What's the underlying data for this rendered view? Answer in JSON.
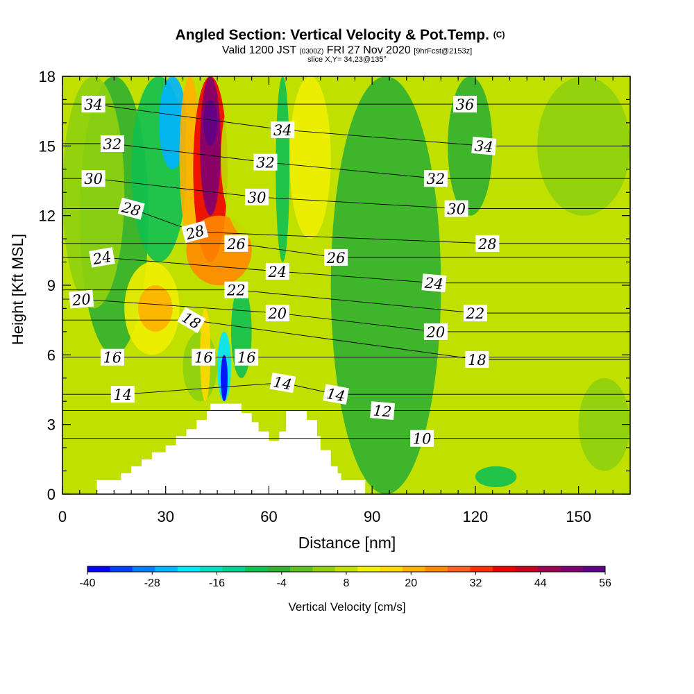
{
  "chart_data": {
    "type": "heatmap",
    "title": "Angled Section: Vertical Velocity & Pot.Temp.",
    "title_mark": "(C)",
    "subtitle_parts": [
      "Valid 1200 JST",
      "(0300Z)",
      "FRI 27 Nov 2020",
      "[9hrFcst@2153z]"
    ],
    "slice_label": "slice X,Y= 34,23@135°",
    "xlabel": "Distance [nm]",
    "ylabel": "Height [Kft MSL]",
    "xlim": [
      0,
      165
    ],
    "ylim": [
      0,
      18
    ],
    "x_ticks": [
      "0",
      "30",
      "60",
      "90",
      "120",
      "150"
    ],
    "x_tick_values": [
      0,
      30,
      60,
      90,
      120,
      150
    ],
    "y_ticks": [
      "0",
      "3",
      "6",
      "9",
      "12",
      "15",
      "18"
    ],
    "y_tick_values": [
      0,
      3,
      6,
      9,
      12,
      15,
      18
    ],
    "terrain": [
      [
        10,
        0
      ],
      [
        10,
        0.6
      ],
      [
        17,
        0.6
      ],
      [
        17,
        0.9
      ],
      [
        20,
        0.9
      ],
      [
        20,
        1.2
      ],
      [
        23,
        1.2
      ],
      [
        23,
        1.5
      ],
      [
        26,
        1.5
      ],
      [
        26,
        1.8
      ],
      [
        30,
        1.8
      ],
      [
        30,
        2.1
      ],
      [
        33,
        2.1
      ],
      [
        33,
        2.5
      ],
      [
        36,
        2.5
      ],
      [
        36,
        2.8
      ],
      [
        39,
        2.8
      ],
      [
        39,
        3.2
      ],
      [
        42,
        3.2
      ],
      [
        42,
        3.6
      ],
      [
        43,
        3.6
      ],
      [
        43,
        3.9
      ],
      [
        52,
        3.9
      ],
      [
        52,
        3.5
      ],
      [
        55,
        3.5
      ],
      [
        55,
        3.1
      ],
      [
        57,
        3.1
      ],
      [
        57,
        2.7
      ],
      [
        60,
        2.7
      ],
      [
        60,
        2.3
      ],
      [
        63,
        2.3
      ],
      [
        63,
        2.7
      ],
      [
        65,
        2.7
      ],
      [
        65,
        3.6
      ],
      [
        71,
        3.6
      ],
      [
        71,
        3.2
      ],
      [
        74,
        3.2
      ],
      [
        74,
        2.5
      ],
      [
        75,
        2.5
      ],
      [
        75,
        1.9
      ],
      [
        78,
        1.9
      ],
      [
        78,
        1.2
      ],
      [
        80,
        1.2
      ],
      [
        80,
        0.9
      ],
      [
        81,
        0.9
      ],
      [
        81,
        0.6
      ],
      [
        88,
        0.6
      ],
      [
        88,
        0
      ]
    ],
    "colorbar": {
      "label": "Vertical Velocity [cm/s]",
      "tick_labels": [
        "-40",
        "-28",
        "-16",
        "-4",
        "8",
        "20",
        "32",
        "44",
        "56"
      ],
      "tick_values": [
        -40,
        -28,
        -16,
        -4,
        8,
        20,
        32,
        44,
        56
      ],
      "colors": [
        "#0000ff",
        "#0040ff",
        "#0080ff",
        "#00b4ff",
        "#00e6ff",
        "#00e0c0",
        "#00d090",
        "#10c050",
        "#30b030",
        "#60c020",
        "#90d010",
        "#c0e000",
        "#f0f000",
        "#ffd800",
        "#ffb000",
        "#ff8800",
        "#ff6020",
        "#ff3000",
        "#ee0000",
        "#c80020",
        "#a00050",
        "#800070",
        "#600088"
      ]
    },
    "wave_field": [
      {
        "x0": 5,
        "x1": 25,
        "y0": 6,
        "y1": 18,
        "w": -5
      },
      {
        "x0": 20,
        "x1": 36,
        "y0": 10,
        "y1": 18,
        "w": -8
      },
      {
        "x0": 0,
        "x1": 18,
        "y0": 8,
        "y1": 18,
        "w": 2
      },
      {
        "x0": 18,
        "x1": 34,
        "y0": 6,
        "y1": 10,
        "w": 14
      },
      {
        "x0": 22,
        "x1": 32,
        "y0": 7,
        "y1": 9,
        "w": 22
      },
      {
        "x0": 28,
        "x1": 36,
        "y0": 14,
        "y1": 18,
        "w": -24
      },
      {
        "x0": 34,
        "x1": 40,
        "y0": 11,
        "y1": 18,
        "w": 20
      },
      {
        "x0": 38,
        "x1": 48,
        "y0": 10,
        "y1": 18,
        "w": 36
      },
      {
        "x0": 40,
        "x1": 46,
        "y0": 12,
        "y1": 18,
        "w": 50
      },
      {
        "x0": 41,
        "x1": 45,
        "y0": 15,
        "y1": 17,
        "w": 56
      },
      {
        "x0": 36,
        "x1": 55,
        "y0": 9,
        "y1": 12,
        "w": 24
      },
      {
        "x0": 46,
        "x1": 62,
        "y0": 11,
        "y1": 18,
        "w": 10
      },
      {
        "x0": 35,
        "x1": 45,
        "y0": 4,
        "y1": 7,
        "w": 4
      },
      {
        "x0": 40,
        "x1": 43,
        "y0": 4,
        "y1": 8,
        "w": 18
      },
      {
        "x0": 45,
        "x1": 49,
        "y0": 4,
        "y1": 7,
        "w": -22
      },
      {
        "x0": 46,
        "x1": 48,
        "y0": 4,
        "y1": 6,
        "w": -36
      },
      {
        "x0": 49,
        "x1": 55,
        "y0": 5,
        "y1": 9,
        "w": -8
      },
      {
        "x0": 62,
        "x1": 66,
        "y0": 10,
        "y1": 18,
        "w": -10
      },
      {
        "x0": 66,
        "x1": 78,
        "y0": 11,
        "y1": 18,
        "w": 12
      },
      {
        "x0": 60,
        "x1": 80,
        "y0": 1,
        "y1": 5,
        "w": 6
      },
      {
        "x0": 78,
        "x1": 110,
        "y0": 0,
        "y1": 18,
        "w": -3
      },
      {
        "x0": 112,
        "x1": 125,
        "y0": 12,
        "y1": 18,
        "w": -6
      },
      {
        "x0": 138,
        "x1": 165,
        "y0": 12,
        "y1": 18,
        "w": 4
      },
      {
        "x0": 130,
        "x1": 148,
        "y0": 4,
        "y1": 7,
        "w": 8
      },
      {
        "x0": 120,
        "x1": 132,
        "y0": 0.3,
        "y1": 1.2,
        "w": -10
      },
      {
        "x0": 150,
        "x1": 165,
        "y0": 1,
        "y1": 5,
        "w": 2
      }
    ],
    "theta_labels": [
      {
        "text": "34",
        "x": 9,
        "y": 16.8,
        "r": 0
      },
      {
        "text": "32",
        "x": 14.5,
        "y": 15.1,
        "r": 0
      },
      {
        "text": "30",
        "x": 9,
        "y": 13.6,
        "r": 0
      },
      {
        "text": "28",
        "x": 20,
        "y": 12.3,
        "r": 15
      },
      {
        "text": "24",
        "x": 11.5,
        "y": 10.2,
        "r": -10
      },
      {
        "text": "20",
        "x": 5.5,
        "y": 8.4,
        "r": -5
      },
      {
        "text": "16",
        "x": 14.5,
        "y": 5.9,
        "r": 0
      },
      {
        "text": "14",
        "x": 17.5,
        "y": 4.3,
        "r": 0
      },
      {
        "text": "28",
        "x": 38.5,
        "y": 11.3,
        "r": -15
      },
      {
        "text": "18",
        "x": 37.5,
        "y": 7.5,
        "r": 30
      },
      {
        "text": "16",
        "x": 41,
        "y": 5.9,
        "r": 0
      },
      {
        "text": "26",
        "x": 50.5,
        "y": 10.8,
        "r": 0
      },
      {
        "text": "22",
        "x": 50.5,
        "y": 8.8,
        "r": 0
      },
      {
        "text": "16",
        "x": 53.5,
        "y": 5.9,
        "r": 0
      },
      {
        "text": "34",
        "x": 64,
        "y": 15.7,
        "r": 0
      },
      {
        "text": "32",
        "x": 59,
        "y": 14.3,
        "r": 0
      },
      {
        "text": "30",
        "x": 56.5,
        "y": 12.8,
        "r": 0
      },
      {
        "text": "24",
        "x": 62.5,
        "y": 9.6,
        "r": 0
      },
      {
        "text": "20",
        "x": 62.5,
        "y": 7.8,
        "r": 0
      },
      {
        "text": "14",
        "x": 64,
        "y": 4.8,
        "r": 10
      },
      {
        "text": "14",
        "x": 79.5,
        "y": 4.3,
        "r": 10
      },
      {
        "text": "26",
        "x": 79.5,
        "y": 10.2,
        "r": 0
      },
      {
        "text": "12",
        "x": 93,
        "y": 3.6,
        "r": 5
      },
      {
        "text": "10",
        "x": 104.5,
        "y": 2.4,
        "r": 0
      },
      {
        "text": "36",
        "x": 117,
        "y": 16.8,
        "r": 0
      },
      {
        "text": "34",
        "x": 122.5,
        "y": 15.0,
        "r": 5
      },
      {
        "text": "32",
        "x": 108.5,
        "y": 13.6,
        "r": 0
      },
      {
        "text": "30",
        "x": 114.5,
        "y": 12.3,
        "r": 0
      },
      {
        "text": "28",
        "x": 123.5,
        "y": 10.8,
        "r": 0
      },
      {
        "text": "24",
        "x": 108,
        "y": 9.1,
        "r": 5
      },
      {
        "text": "22",
        "x": 120,
        "y": 7.8,
        "r": 0
      },
      {
        "text": "20",
        "x": 108.5,
        "y": 7.0,
        "r": 0
      },
      {
        "text": "18",
        "x": 120.5,
        "y": 5.8,
        "r": 0
      }
    ]
  }
}
